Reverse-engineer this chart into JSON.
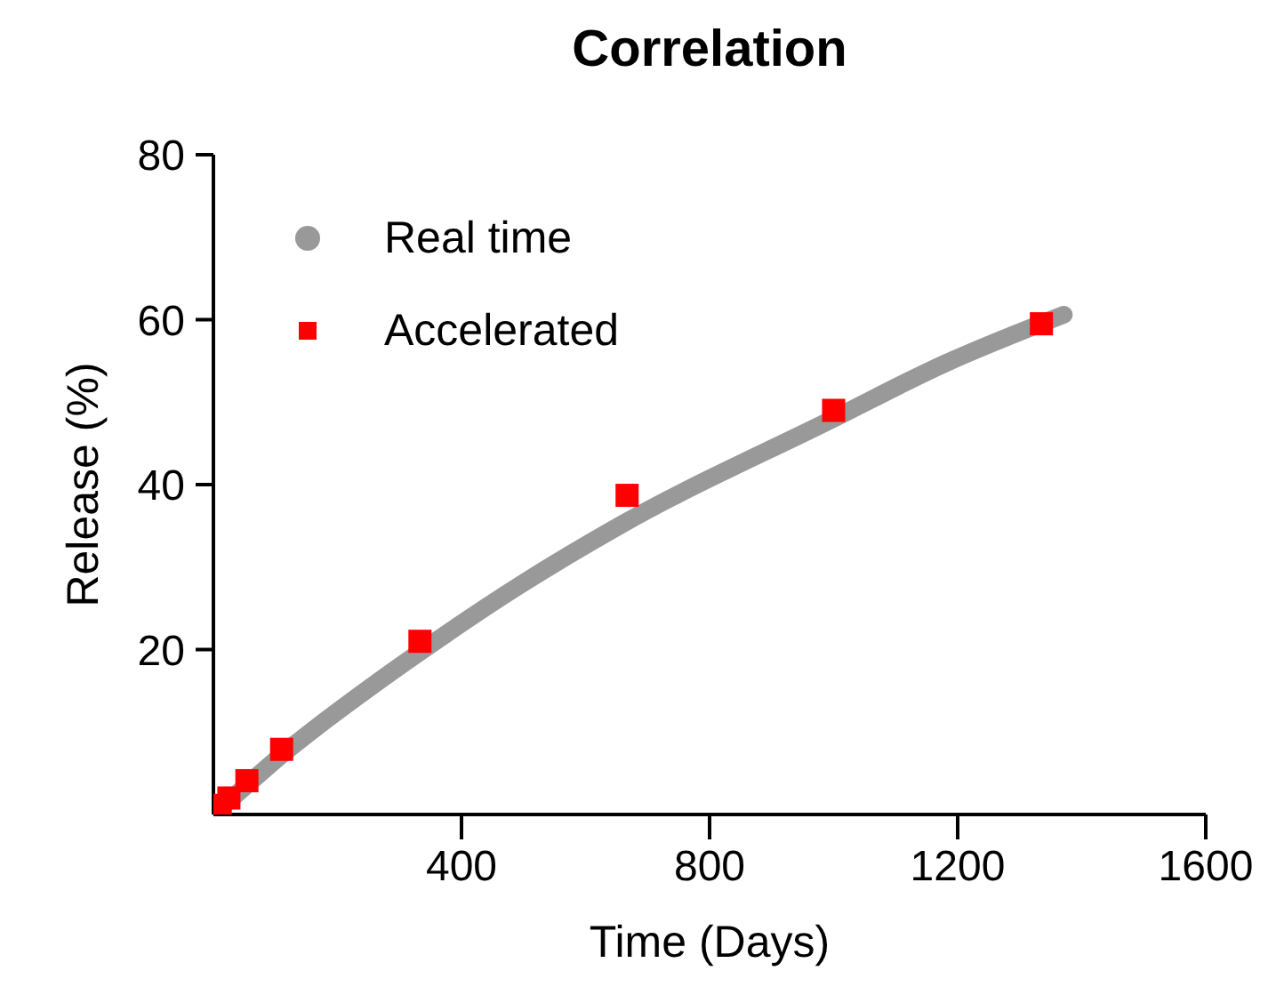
{
  "chart_data": {
    "type": "scatter",
    "title": "Correlation",
    "xlabel": "Time (Days)",
    "ylabel": "Release (%)",
    "xlim": [
      0,
      1600
    ],
    "xticks": [
      400,
      800,
      1200,
      1600
    ],
    "ylim": [
      0,
      80
    ],
    "yticks": [
      20,
      40,
      60,
      80
    ],
    "grid": false,
    "legend": "top left",
    "series": [
      {
        "name": "Real time",
        "type": "line",
        "color": "#999999",
        "marker": "none",
        "x": [
          0,
          53,
          100,
          165,
          218,
          333,
          494,
          659,
          1000,
          1177,
          1371
        ],
        "values": [
          0,
          3.5,
          6.6,
          10.5,
          13.5,
          19.7,
          27.8,
          35.2,
          48.0,
          54.6,
          60.6
        ]
      },
      {
        "name": "Accelerated",
        "color": "#ff0000",
        "marker": "square",
        "x": [
          11,
          25,
          54,
          110,
          333,
          667,
          1000,
          1335
        ],
        "values": [
          1.1,
          2.0,
          4.1,
          7.9,
          21.0,
          38.7,
          49.0,
          59.5
        ]
      }
    ]
  }
}
